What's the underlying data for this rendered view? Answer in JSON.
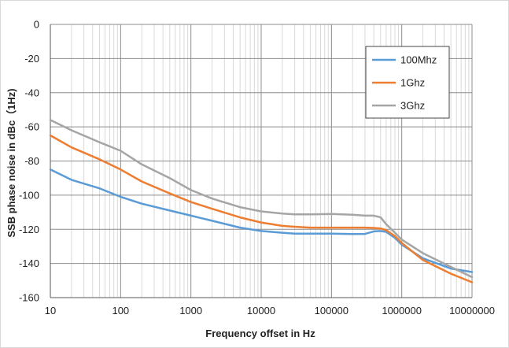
{
  "chart_data": {
    "type": "line",
    "title": "",
    "xlabel": "Frequency offset in Hz",
    "ylabel": "SSB phase noise in dBc（1Hz)",
    "xscale": "log",
    "xlim": [
      10,
      10000000
    ],
    "ylim": [
      -160,
      0
    ],
    "x_ticks": [
      10,
      100,
      1000,
      10000,
      100000,
      1000000,
      10000000
    ],
    "x_tick_labels": [
      "10",
      "100",
      "1000",
      "10000",
      "100000",
      "1000000",
      "10000000"
    ],
    "y_ticks": [
      0,
      -20,
      -40,
      -60,
      -80,
      -100,
      -120,
      -140,
      -160
    ],
    "y_tick_labels": [
      "0",
      "-20",
      "-40",
      "-60",
      "-80",
      "-100",
      "-120",
      "-140",
      "-160"
    ],
    "grid": true,
    "legend_position": "top-right",
    "series": [
      {
        "name": "100Mhz",
        "color": "#5b9bd5",
        "x": [
          10,
          20,
          50,
          100,
          200,
          500,
          1000,
          2000,
          5000,
          10000,
          20000,
          30000,
          50000,
          100000,
          200000,
          300000,
          400000,
          500000,
          600000,
          800000,
          1000000,
          2000000,
          5000000,
          10000000
        ],
        "y": [
          -85,
          -91,
          -96,
          -101,
          -105,
          -109,
          -112,
          -115,
          -119,
          -121,
          -122,
          -122.5,
          -122.5,
          -122.5,
          -122.8,
          -122.7,
          -121.2,
          -121,
          -121.5,
          -125,
          -129,
          -137,
          -143,
          -145
        ]
      },
      {
        "name": "1Ghz",
        "color": "#ed7d31",
        "x": [
          10,
          20,
          50,
          100,
          200,
          500,
          1000,
          2000,
          5000,
          10000,
          20000,
          30000,
          50000,
          100000,
          200000,
          300000,
          400000,
          500000,
          600000,
          800000,
          1000000,
          2000000,
          5000000,
          10000000
        ],
        "y": [
          -65,
          -72,
          -79,
          -85,
          -92,
          -99,
          -104,
          -108,
          -113,
          -116,
          -118,
          -118.5,
          -119,
          -119,
          -119,
          -119,
          -119.2,
          -119.5,
          -120.5,
          -124,
          -128,
          -138,
          -146,
          -151
        ]
      },
      {
        "name": "3Ghz",
        "color": "#a5a5a5",
        "x": [
          10,
          20,
          50,
          100,
          200,
          500,
          1000,
          2000,
          5000,
          10000,
          20000,
          30000,
          50000,
          100000,
          200000,
          300000,
          400000,
          500000,
          600000,
          800000,
          1000000,
          2000000,
          5000000,
          10000000
        ],
        "y": [
          -56,
          -62,
          -69,
          -74,
          -82,
          -90,
          -97,
          -102,
          -107,
          -109.5,
          -110.8,
          -111.2,
          -111.2,
          -111,
          -111.5,
          -112,
          -112,
          -113,
          -117,
          -122,
          -126,
          -134,
          -142,
          -148
        ]
      }
    ]
  }
}
